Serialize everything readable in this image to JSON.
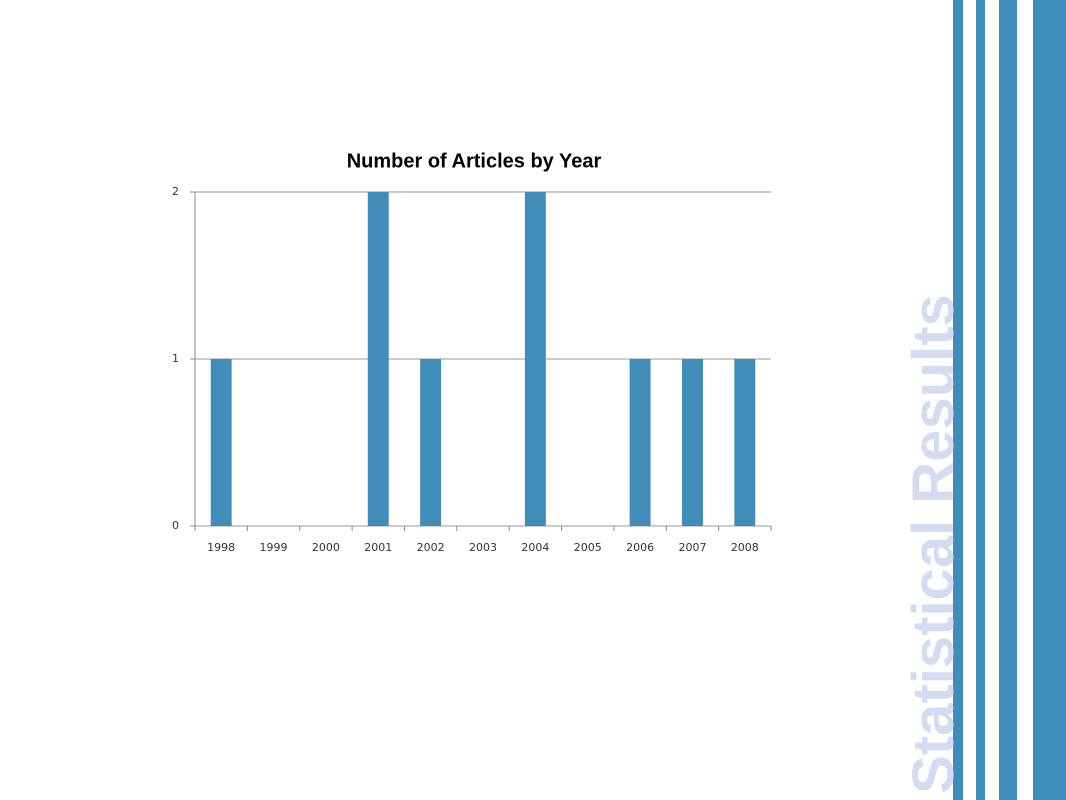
{
  "slide": {
    "title": "Statistical Results"
  },
  "chart_data": {
    "type": "bar",
    "title": "Number of Articles by Year",
    "categories": [
      "1998",
      "1999",
      "2000",
      "2001",
      "2002",
      "2003",
      "2004",
      "2005",
      "2006",
      "2007",
      "2008"
    ],
    "values": [
      1,
      0,
      0,
      2,
      1,
      0,
      2,
      0,
      1,
      1,
      1
    ],
    "color": "#3f8db8",
    "ylim": [
      0,
      2
    ],
    "yticks": [
      0,
      1,
      2
    ],
    "grid": true
  }
}
